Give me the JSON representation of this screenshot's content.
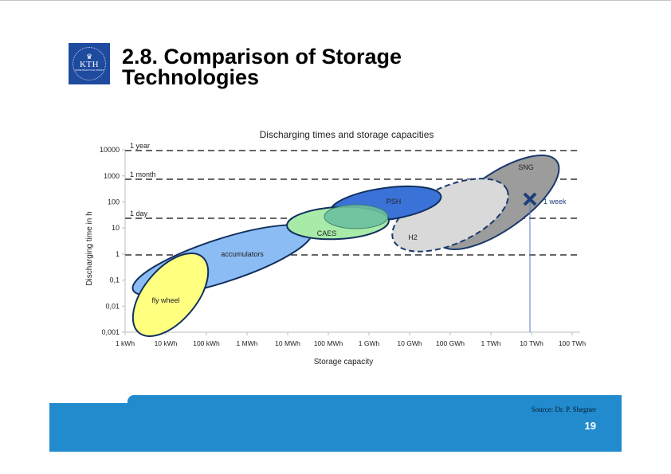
{
  "slide": {
    "title": "2.8. Comparison of Storage\nTechnologies",
    "logo": {
      "text": "KTH",
      "subtext": "VETENSKAP OCH KONST",
      "icon": "crown-icon",
      "color": "#1f4b9e"
    },
    "source": "Source: Dr. P. Shegner",
    "page_number": "19",
    "footer_color": "#218bcd"
  },
  "chart_data": {
    "type": "scatter",
    "title": "Discharging times and storage capacities",
    "xlabel": "Storage capacity",
    "ylabel": "Discharging time in h",
    "x_scale": "log",
    "y_scale": "log",
    "x_ticks": [
      "1 kWh",
      "10 kWh",
      "100 kWh",
      "1 MWh",
      "10 MWh",
      "100 MWh",
      "1 GWh",
      "10 GWh",
      "100 GWh",
      "1 TWh",
      "10 TWh",
      "100 TWh"
    ],
    "y_ticks": [
      "0,001",
      "0,01",
      "0,1",
      "1",
      "10",
      "100",
      "1000",
      "10000"
    ],
    "ylim": [
      0.001,
      10000
    ],
    "reference_lines": [
      {
        "label": "1 year",
        "y_hours": 8760
      },
      {
        "label": "1 month",
        "y_hours": 720
      },
      {
        "label": "1 day",
        "y_hours": 24
      },
      {
        "label": "",
        "y_hours": 1
      }
    ],
    "regions": [
      {
        "name": "fly wheel",
        "color": "#ffff80",
        "x_range_kWh": [
          1,
          300
        ],
        "y_range_h": [
          0.001,
          0.5
        ]
      },
      {
        "name": "accumulators",
        "color": "#8cbcf4",
        "x_range_kWh": [
          1.5,
          50000
        ],
        "y_range_h": [
          0.04,
          10
        ]
      },
      {
        "name": "CAES",
        "color": "#a8eaa8",
        "x_range_kWh": [
          10000,
          2000000
        ],
        "y_range_h": [
          1.5,
          40
        ]
      },
      {
        "name": "PSH",
        "color": "#3a72d8",
        "x_range_kWh": [
          200000,
          3000000000
        ],
        "y_range_h": [
          5,
          400
        ]
      },
      {
        "name": "H2",
        "color": "#d9d9d9",
        "x_range_kWh": [
          10000000,
          5000000000
        ],
        "y_range_h": [
          1,
          1000
        ],
        "border": "dashed"
      },
      {
        "name": "SNG",
        "color": "#9c9c9c",
        "x_range_kWh": [
          30000000,
          100000000000
        ],
        "y_range_h": [
          1,
          10000
        ]
      }
    ],
    "annotations": [
      {
        "label": "1 week",
        "marker": "x",
        "x": "10 TWh",
        "y_hours": 168,
        "color": "#1e3f7a"
      }
    ],
    "grid": false,
    "legend": "none"
  }
}
